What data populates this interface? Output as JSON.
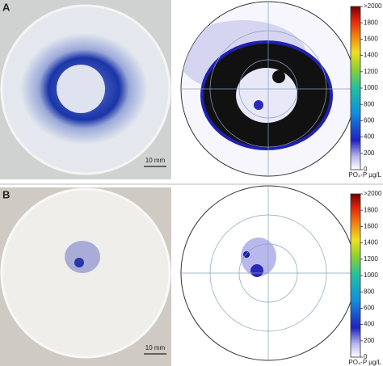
{
  "panels": [
    {
      "label": "A",
      "scale_bar": "10 mm",
      "colorbar": {
        "range": [
          0,
          2000
        ],
        "unit": "PO₄-P µg/L",
        "ticks": [
          {
            "value": 2000,
            "label": ">2000"
          },
          1800,
          1600,
          1400,
          1200,
          1000,
          800,
          600,
          400,
          200,
          0
        ]
      }
    },
    {
      "label": "B",
      "scale_bar": "10 mm",
      "colorbar": {
        "range": [
          0,
          2000
        ],
        "unit": "PO₄-P µg/L",
        "ticks": [
          {
            "value": 2000,
            "label": ">2000"
          },
          1800,
          1600,
          1400,
          1200,
          1000,
          800,
          600,
          400,
          200,
          0
        ]
      }
    }
  ]
}
